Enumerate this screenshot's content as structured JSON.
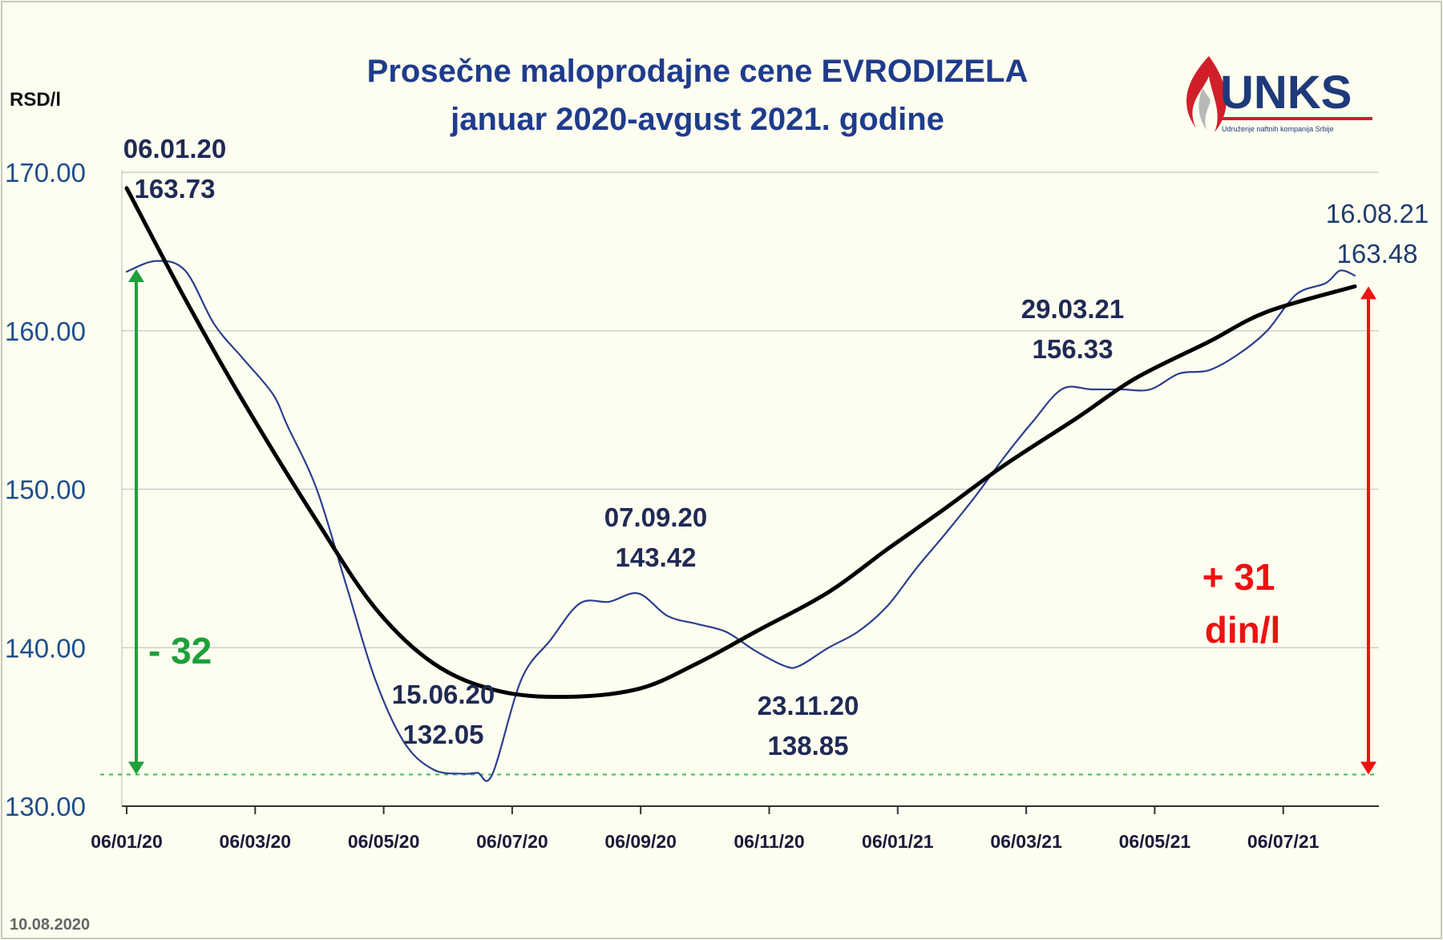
{
  "chart_data": {
    "type": "line",
    "title": [
      "Prosečne maloprodajne cene EVRODIZELA",
      "januar 2020-avgust 2021. godine"
    ],
    "ylabel": "RSD/l",
    "ylim": [
      130,
      170
    ],
    "yticks": [
      "130.00",
      "140.00",
      "150.00",
      "160.00",
      "170.00"
    ],
    "xticks": [
      "06/01/20",
      "06/03/20",
      "06/05/20",
      "06/07/20",
      "06/09/20",
      "06/11/20",
      "06/01/21",
      "06/03/21",
      "06/05/21",
      "06/07/21"
    ],
    "xrange": [
      "2020-01-06",
      "2021-08-16"
    ],
    "grid": "horizontal",
    "series": [
      {
        "color": "#2b3f8f",
        "points": [
          [
            "2020-01-06",
            163.73
          ],
          [
            "2020-01-20",
            164.4
          ],
          [
            "2020-02-03",
            163.8
          ],
          [
            "2020-02-17",
            160.4
          ],
          [
            "2020-03-02",
            158.2
          ],
          [
            "2020-03-16",
            156.0
          ],
          [
            "2020-03-23",
            154.0
          ],
          [
            "2020-04-06",
            150.0
          ],
          [
            "2020-04-20",
            144.0
          ],
          [
            "2020-05-04",
            138.0
          ],
          [
            "2020-05-18",
            134.0
          ],
          [
            "2020-06-01",
            132.3
          ],
          [
            "2020-06-15",
            132.05
          ],
          [
            "2020-06-22",
            132.1
          ],
          [
            "2020-06-29",
            132.0
          ],
          [
            "2020-07-13",
            138.0
          ],
          [
            "2020-07-27",
            140.5
          ],
          [
            "2020-08-10",
            142.8
          ],
          [
            "2020-08-24",
            142.9
          ],
          [
            "2020-09-07",
            143.42
          ],
          [
            "2020-09-21",
            142.0
          ],
          [
            "2020-10-05",
            141.5
          ],
          [
            "2020-10-19",
            141.0
          ],
          [
            "2020-11-02",
            139.8
          ],
          [
            "2020-11-16",
            138.85
          ],
          [
            "2020-11-23",
            138.85
          ],
          [
            "2020-12-07",
            140.0
          ],
          [
            "2020-12-21",
            141.0
          ],
          [
            "2021-01-04",
            142.6
          ],
          [
            "2021-01-18",
            145.0
          ],
          [
            "2021-02-01",
            147.2
          ],
          [
            "2021-02-15",
            149.5
          ],
          [
            "2021-03-01",
            152.0
          ],
          [
            "2021-03-15",
            154.3
          ],
          [
            "2021-03-29",
            156.33
          ],
          [
            "2021-04-12",
            156.3
          ],
          [
            "2021-04-26",
            156.3
          ],
          [
            "2021-05-10",
            156.3
          ],
          [
            "2021-05-24",
            157.3
          ],
          [
            "2021-06-07",
            157.5
          ],
          [
            "2021-06-21",
            158.5
          ],
          [
            "2021-07-05",
            160.0
          ],
          [
            "2021-07-19",
            162.3
          ],
          [
            "2021-08-02",
            163.0
          ],
          [
            "2021-08-09",
            163.8
          ],
          [
            "2021-08-16",
            163.48
          ]
        ]
      },
      {
        "color": "#000000",
        "points": [
          [
            "2020-01-06",
            169.0
          ],
          [
            "2020-02-03",
            162.0
          ],
          [
            "2020-03-02",
            155.5
          ],
          [
            "2020-04-06",
            148.0
          ],
          [
            "2020-05-04",
            142.5
          ],
          [
            "2020-06-01",
            139.0
          ],
          [
            "2020-07-01",
            137.3
          ],
          [
            "2020-08-03",
            136.9
          ],
          [
            "2020-09-07",
            137.4
          ],
          [
            "2020-10-05",
            139.0
          ],
          [
            "2020-11-02",
            141.0
          ],
          [
            "2020-12-07",
            143.5
          ],
          [
            "2021-01-04",
            146.2
          ],
          [
            "2021-02-01",
            148.8
          ],
          [
            "2021-03-01",
            151.5
          ],
          [
            "2021-04-05",
            154.5
          ],
          [
            "2021-05-03",
            157.0
          ],
          [
            "2021-06-07",
            159.3
          ],
          [
            "2021-07-05",
            161.2
          ],
          [
            "2021-08-16",
            162.8
          ]
        ]
      }
    ],
    "annotations": [
      {
        "date": "06.01.20",
        "value": "163.73"
      },
      {
        "date": "15.06.20",
        "value": "132.05"
      },
      {
        "date": "07.09.20",
        "value": "143.42"
      },
      {
        "date": "23.11.20",
        "value": "138.85"
      },
      {
        "date": "29.03.21",
        "value": "156.33"
      },
      {
        "date": "16.08.21",
        "value": "163.48"
      }
    ],
    "baseline": 132,
    "differences": [
      {
        "text": "- 32",
        "color": "#1fa03a"
      },
      {
        "text": [
          "+ 31",
          "din/l"
        ],
        "color": "#ee1111"
      }
    ]
  },
  "logo": {
    "name": "UNKS",
    "subtitle": "Udruženje naftnih kompanija Srbije",
    "icon": "flame-icon"
  },
  "footer_date": "10.08.2020"
}
